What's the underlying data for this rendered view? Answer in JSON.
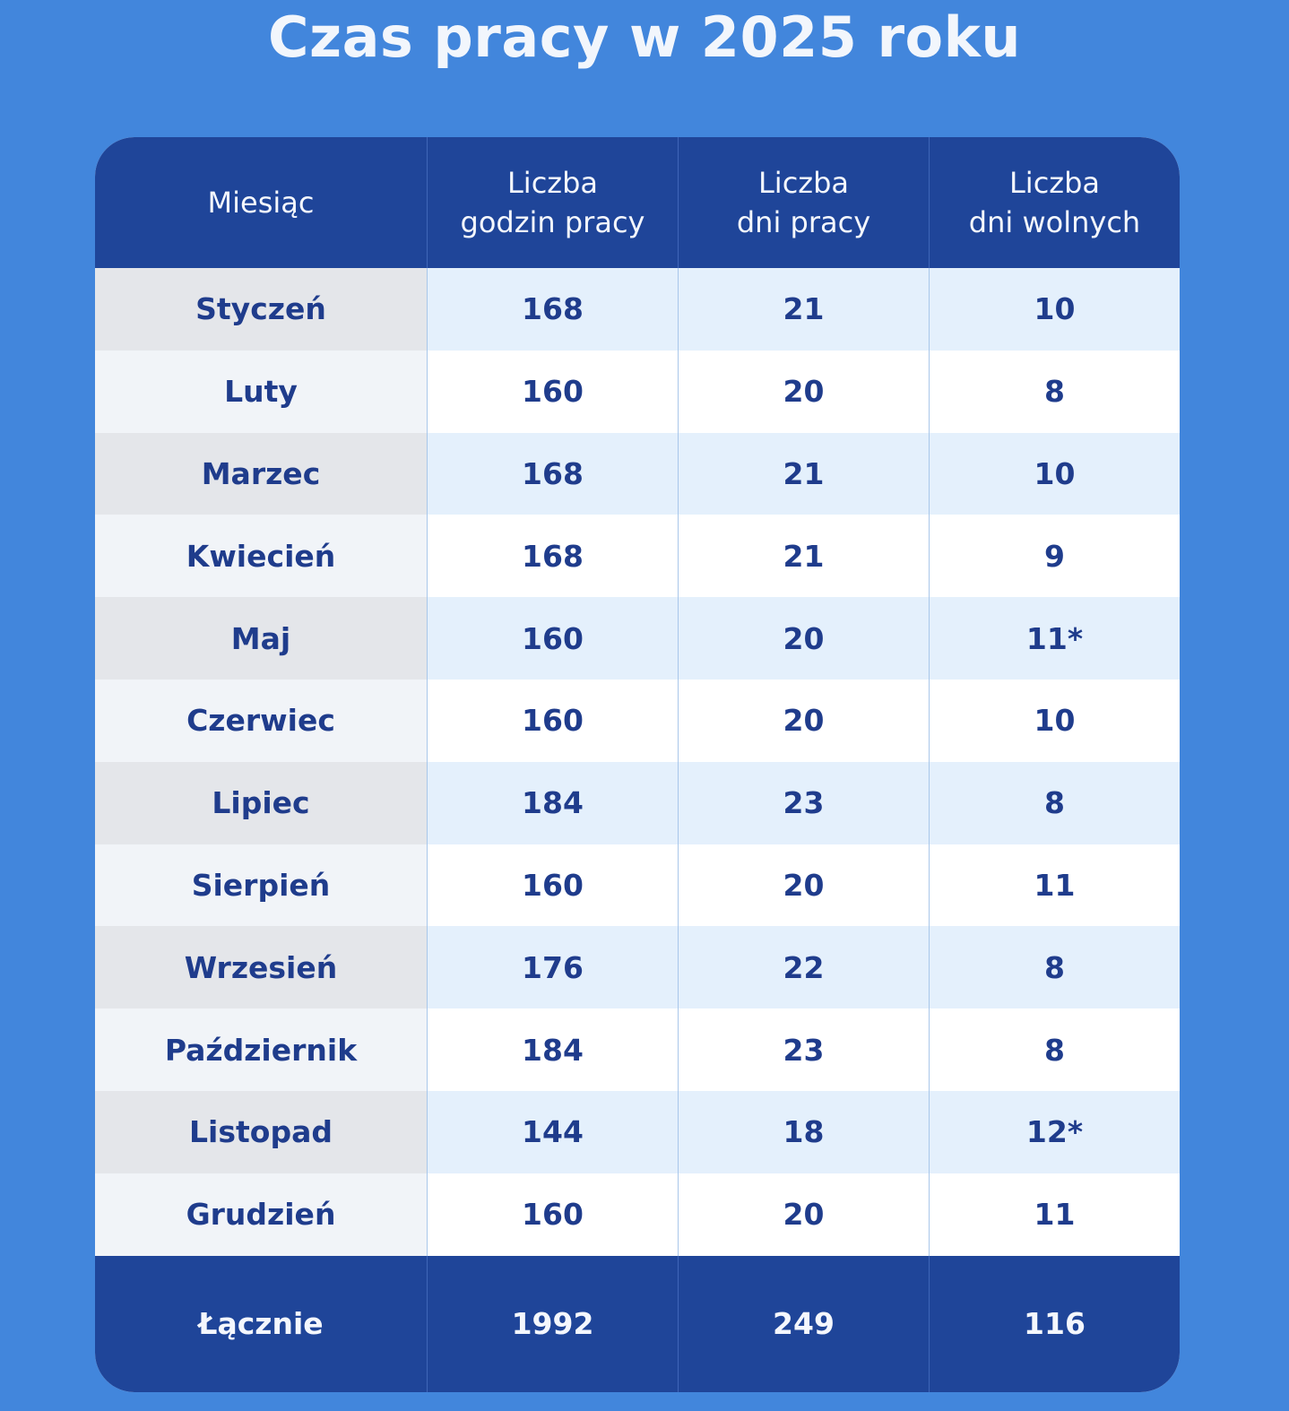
{
  "title": "Czas pracy w 2025 roku",
  "table": {
    "headers": [
      [
        "Miesiąc"
      ],
      [
        "Liczba",
        "godzin pracy"
      ],
      [
        "Liczba",
        "dni pracy"
      ],
      [
        "Liczba",
        "dni wolnych"
      ]
    ],
    "rows": [
      [
        "Styczeń",
        "168",
        "21",
        "10"
      ],
      [
        "Luty",
        "160",
        "20",
        "8"
      ],
      [
        "Marzec",
        "168",
        "21",
        "10"
      ],
      [
        "Kwiecień",
        "168",
        "21",
        "9"
      ],
      [
        "Maj",
        "160",
        "20",
        "11*"
      ],
      [
        "Czerwiec",
        "160",
        "20",
        "10"
      ],
      [
        "Lipiec",
        "184",
        "23",
        "8"
      ],
      [
        "Sierpień",
        "160",
        "20",
        "11"
      ],
      [
        "Wrzesień",
        "176",
        "22",
        "8"
      ],
      [
        "Październik",
        "184",
        "23",
        "8"
      ],
      [
        "Listopad",
        "144",
        "18",
        "12*"
      ],
      [
        "Grudzień",
        "160",
        "20",
        "11"
      ]
    ],
    "total": [
      "Łącznie",
      "1992",
      "249",
      "116"
    ]
  },
  "colors": {
    "background": "#4286dc",
    "header": "#1f4599",
    "text": "#1f3c8c"
  }
}
